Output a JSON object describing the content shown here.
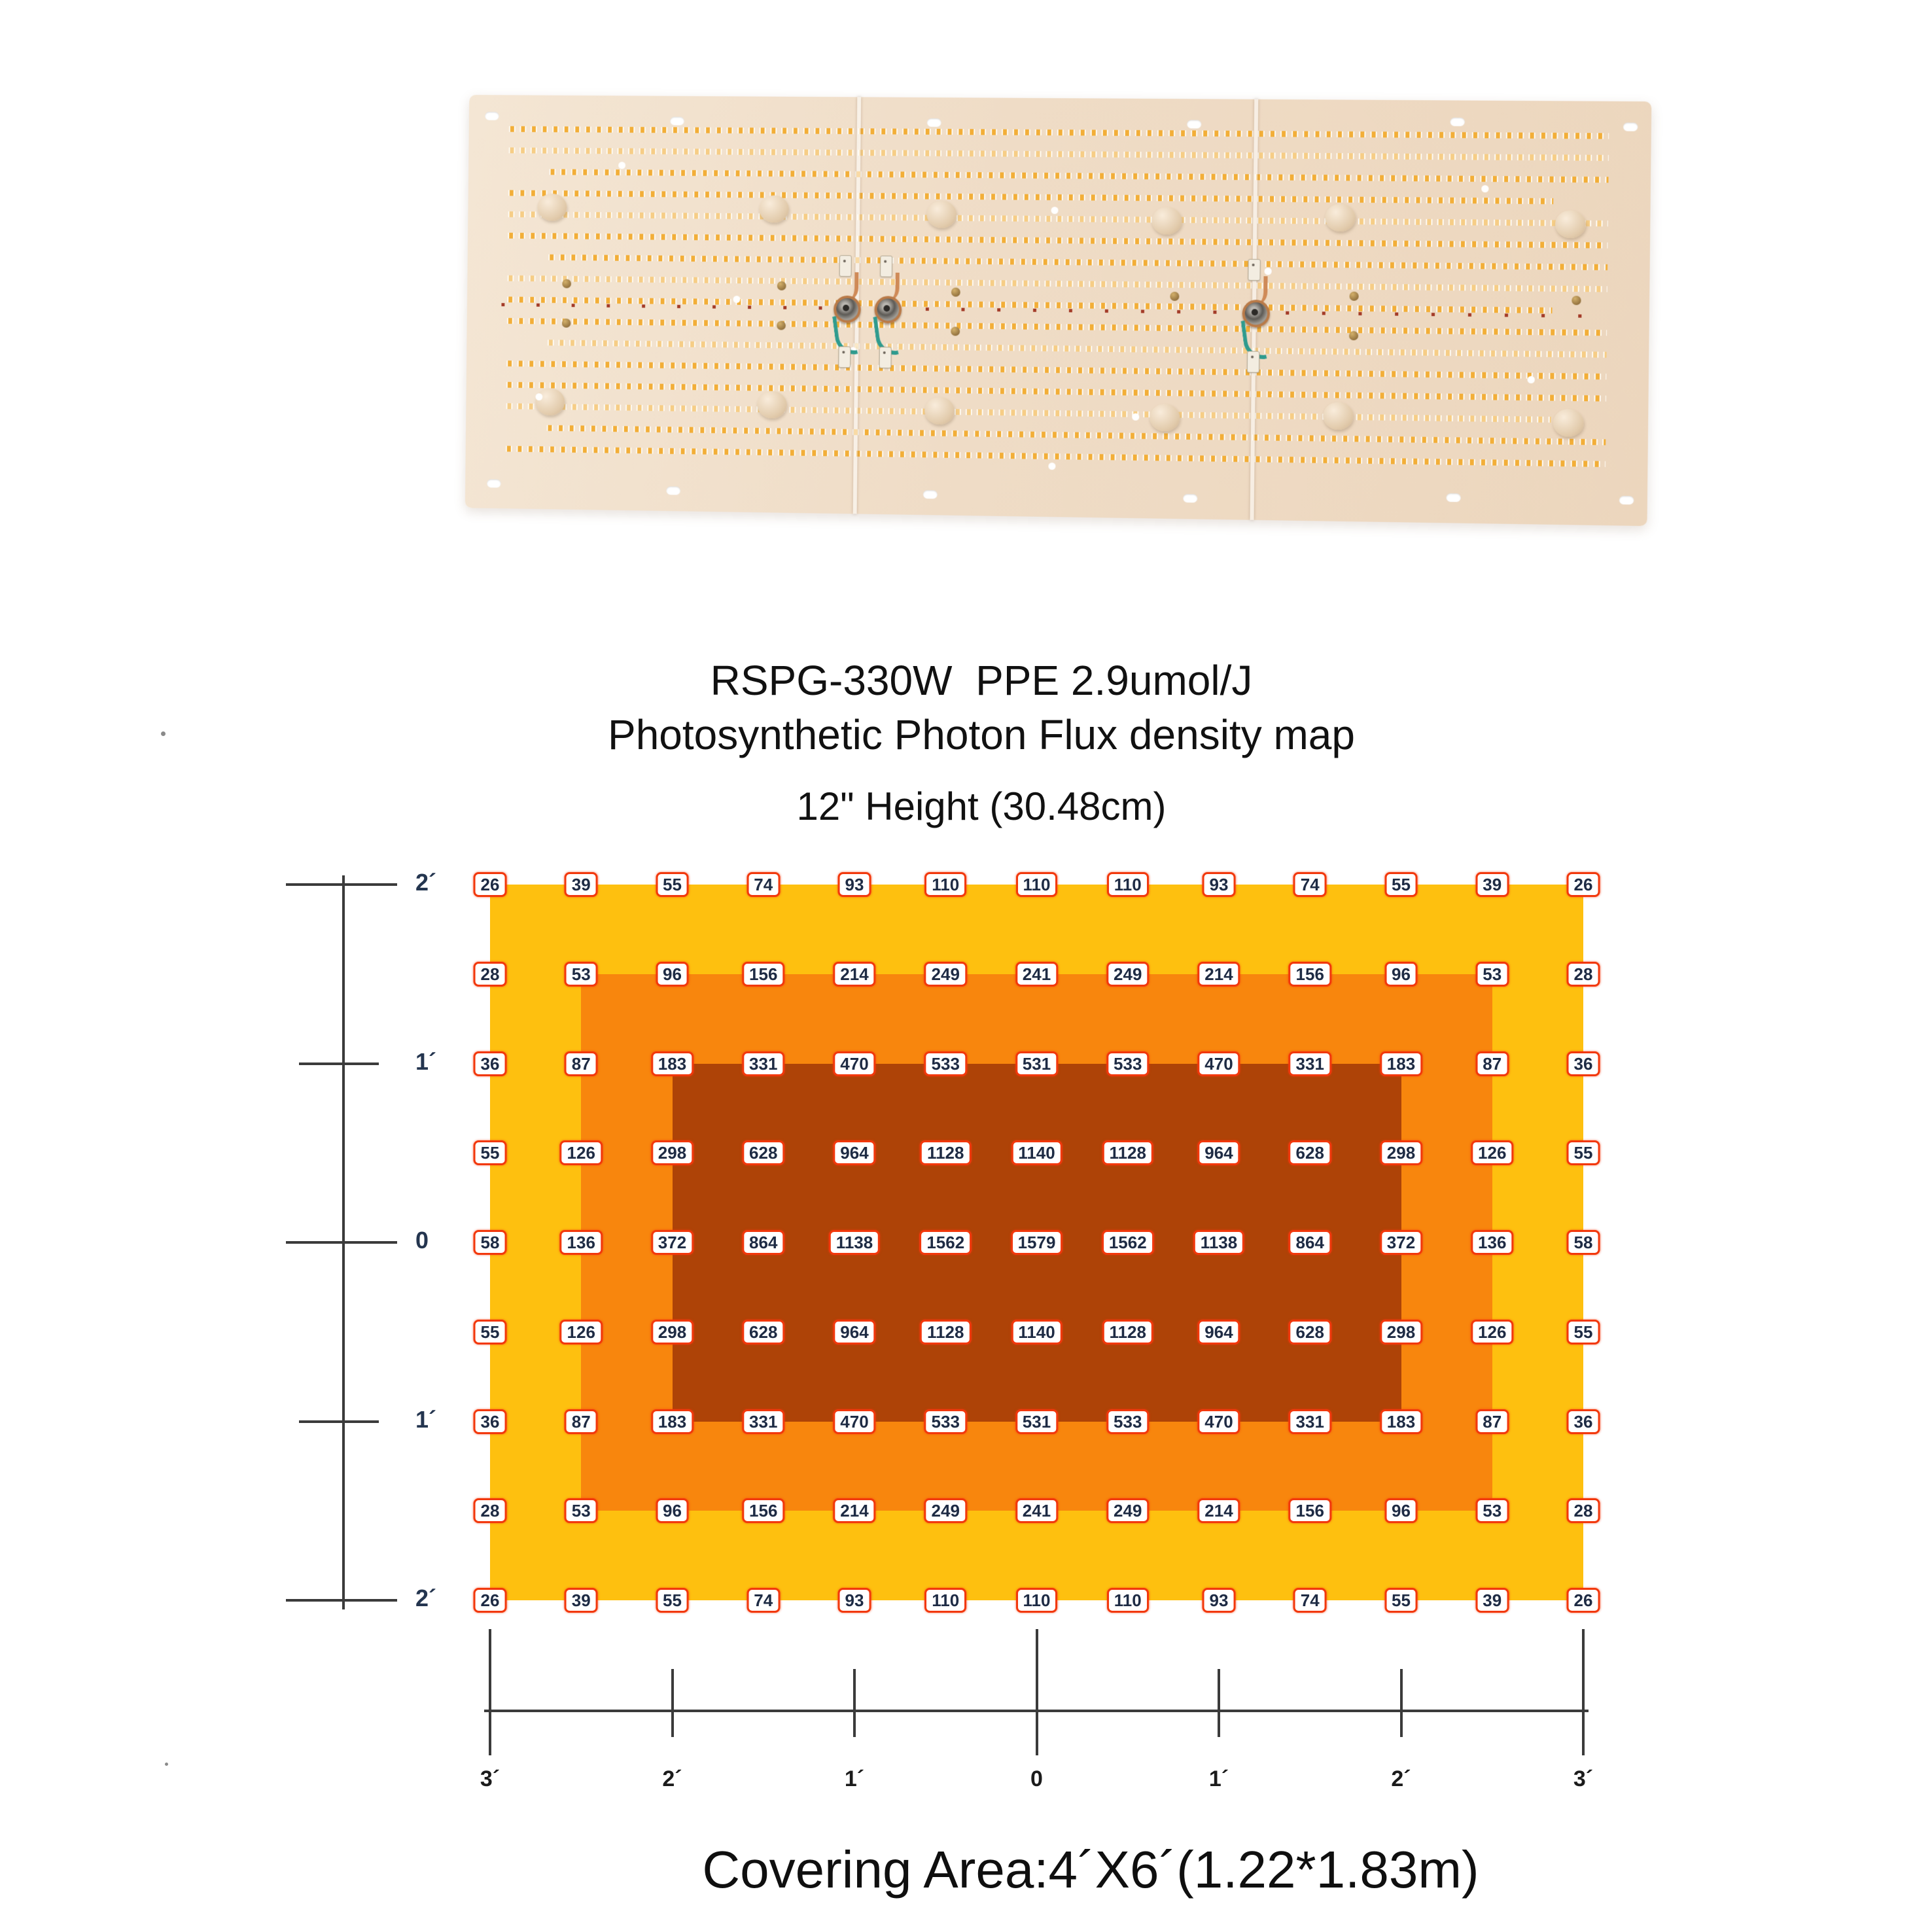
{
  "product_photo": {
    "alt": "Three-panel LED grow light quantum board with rows of warm white diodes, standoffs, screws and wired connectors"
  },
  "title": {
    "line1": "RSPG-330W  PPE 2.9umol/J",
    "line2": "Photosynthetic Photon Flux density map",
    "line3": "12\" Height (30.48cm)"
  },
  "footer": {
    "covering_area": "Covering Area:4´X6´(1.22*1.83m)"
  },
  "chart_data": {
    "type": "heatmap",
    "title": "RSPG-330W  PPE 2.9umol/J",
    "subtitle": "Photosynthetic Photon Flux density map",
    "condition": "12\" Height (30.48cm)",
    "x_axis": {
      "tick_labels": [
        "3´",
        "2´",
        "1´",
        "0",
        "1´",
        "2´",
        "3´"
      ]
    },
    "y_axis": {
      "tick_labels": [
        "2´",
        "1´",
        "0",
        "1´",
        "2´"
      ]
    },
    "grid": [
      [
        26,
        39,
        55,
        74,
        93,
        110,
        110,
        110,
        93,
        74,
        55,
        39,
        26
      ],
      [
        28,
        53,
        96,
        156,
        214,
        249,
        241,
        249,
        214,
        156,
        96,
        53,
        28
      ],
      [
        36,
        87,
        183,
        331,
        470,
        533,
        531,
        533,
        470,
        331,
        183,
        87,
        36
      ],
      [
        55,
        126,
        298,
        628,
        964,
        1128,
        1140,
        1128,
        964,
        628,
        298,
        126,
        55
      ],
      [
        58,
        136,
        372,
        864,
        1138,
        1562,
        1579,
        1562,
        1138,
        864,
        372,
        136,
        58
      ],
      [
        55,
        126,
        298,
        628,
        964,
        1128,
        1140,
        1128,
        964,
        628,
        298,
        126,
        55
      ],
      [
        36,
        87,
        183,
        331,
        470,
        533,
        531,
        533,
        470,
        331,
        183,
        87,
        36
      ],
      [
        28,
        53,
        96,
        156,
        214,
        249,
        241,
        249,
        214,
        156,
        96,
        53,
        28
      ],
      [
        26,
        39,
        55,
        74,
        93,
        110,
        110,
        110,
        93,
        74,
        55,
        39,
        26
      ]
    ],
    "bands": [
      {
        "name": "outer",
        "color": "#FEC00F",
        "cols": [
          1,
          13
        ],
        "rows": [
          1,
          9
        ]
      },
      {
        "name": "middle",
        "color": "#F8860D",
        "cols": [
          2,
          12
        ],
        "rows": [
          2,
          8
        ]
      },
      {
        "name": "inner",
        "color": "#AE4307",
        "cols": [
          3,
          11
        ],
        "rows": [
          3,
          7
        ]
      }
    ],
    "value_box_style": {
      "bg": "#FFFFFF",
      "border": "#F2380C",
      "text": "#1E2B44"
    },
    "covering_area": "Covering Area:4´X6´(1.22*1.83m)",
    "legend_position": "none",
    "grid_lines": "off"
  },
  "colors": {
    "axis": "#3B3B3B",
    "title_text": "#111111",
    "board_base": "#F0DEC9"
  }
}
